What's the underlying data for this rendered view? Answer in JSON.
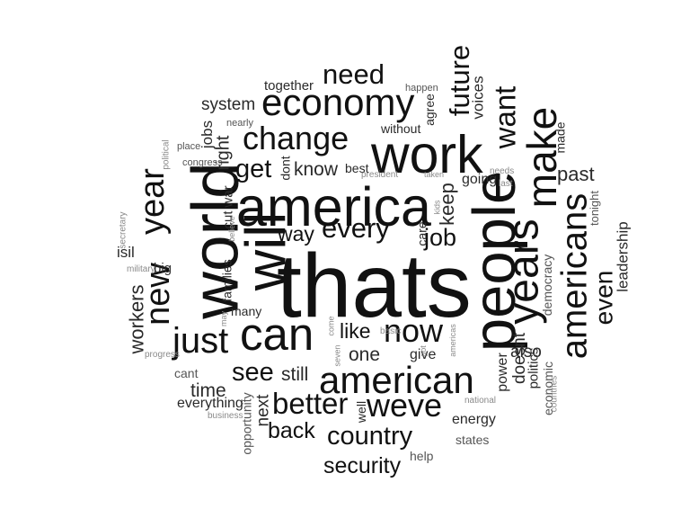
{
  "words": [
    {
      "text": "thats",
      "weight": 1.0,
      "vertical": false
    },
    {
      "text": "world",
      "weight": 0.72,
      "vertical": true
    },
    {
      "text": "people",
      "weight": 0.66,
      "vertical": true
    },
    {
      "text": "will",
      "weight": 0.62,
      "vertical": true
    },
    {
      "text": "america",
      "weight": 0.6,
      "vertical": false
    },
    {
      "text": "work",
      "weight": 0.58,
      "vertical": false
    },
    {
      "text": "can",
      "weight": 0.5,
      "vertical": false
    },
    {
      "text": "years",
      "weight": 0.46,
      "vertical": true
    },
    {
      "text": "make",
      "weight": 0.44,
      "vertical": true
    },
    {
      "text": "economy",
      "weight": 0.4,
      "vertical": false
    },
    {
      "text": "american",
      "weight": 0.4,
      "vertical": false
    },
    {
      "text": "just",
      "weight": 0.38,
      "vertical": false
    },
    {
      "text": "americans",
      "weight": 0.38,
      "vertical": true
    },
    {
      "text": "new",
      "weight": 0.36,
      "vertical": true
    },
    {
      "text": "year",
      "weight": 0.36,
      "vertical": true
    },
    {
      "text": "change",
      "weight": 0.34,
      "vertical": false
    },
    {
      "text": "now",
      "weight": 0.34,
      "vertical": false
    },
    {
      "text": "weve",
      "weight": 0.34,
      "vertical": false
    },
    {
      "text": "want",
      "weight": 0.3,
      "vertical": true
    },
    {
      "text": "better",
      "weight": 0.3,
      "vertical": false
    },
    {
      "text": "future",
      "weight": 0.28,
      "vertical": true
    },
    {
      "text": "need",
      "weight": 0.28,
      "vertical": false
    },
    {
      "text": "every",
      "weight": 0.28,
      "vertical": false
    },
    {
      "text": "country",
      "weight": 0.26,
      "vertical": false
    },
    {
      "text": "see",
      "weight": 0.26,
      "vertical": false
    },
    {
      "text": "get",
      "weight": 0.26,
      "vertical": false
    },
    {
      "text": "even",
      "weight": 0.25,
      "vertical": true
    },
    {
      "text": "job",
      "weight": 0.24,
      "vertical": false
    },
    {
      "text": "back",
      "weight": 0.22,
      "vertical": false
    },
    {
      "text": "security",
      "weight": 0.22,
      "vertical": false
    },
    {
      "text": "like",
      "weight": 0.2,
      "vertical": false
    },
    {
      "text": "way",
      "weight": 0.2,
      "vertical": false
    },
    {
      "text": "workers",
      "weight": 0.18,
      "vertical": true
    },
    {
      "text": "keep",
      "weight": 0.18,
      "vertical": true
    },
    {
      "text": "past",
      "weight": 0.18,
      "vertical": false
    },
    {
      "text": "know",
      "weight": 0.17,
      "vertical": false
    },
    {
      "text": "time",
      "weight": 0.17,
      "vertical": false
    },
    {
      "text": "still",
      "weight": 0.17,
      "vertical": false
    },
    {
      "text": "one",
      "weight": 0.17,
      "vertical": false
    },
    {
      "text": "right",
      "weight": 0.16,
      "vertical": true
    },
    {
      "text": "doesnt",
      "weight": 0.15,
      "vertical": true
    },
    {
      "text": "also",
      "weight": 0.15,
      "vertical": false
    },
    {
      "text": "system",
      "weight": 0.15,
      "vertical": false
    },
    {
      "text": "next",
      "weight": 0.15,
      "vertical": true
    },
    {
      "text": "leadership",
      "weight": 0.13,
      "vertical": true
    },
    {
      "text": "voices",
      "weight": 0.13,
      "vertical": true
    },
    {
      "text": "jobs",
      "weight": 0.13,
      "vertical": true
    },
    {
      "text": "isil",
      "weight": 0.13,
      "vertical": false
    },
    {
      "text": "going",
      "weight": 0.12,
      "vertical": false
    },
    {
      "text": "energy",
      "weight": 0.12,
      "vertical": false
    },
    {
      "text": "everything",
      "weight": 0.12,
      "vertical": false
    },
    {
      "text": "give",
      "weight": 0.12,
      "vertical": false
    },
    {
      "text": "power",
      "weight": 0.12,
      "vertical": true
    },
    {
      "text": "together",
      "weight": 0.11,
      "vertical": false
    },
    {
      "text": "politics",
      "weight": 0.11,
      "vertical": true
    },
    {
      "text": "big",
      "weight": 0.11,
      "vertical": false
    },
    {
      "text": "cut",
      "weight": 0.11,
      "vertical": true
    },
    {
      "text": "war",
      "weight": 0.11,
      "vertical": true
    },
    {
      "text": "families",
      "weight": 0.1,
      "vertical": true
    },
    {
      "text": "agree",
      "weight": 0.1,
      "vertical": true
    },
    {
      "text": "without",
      "weight": 0.1,
      "vertical": false
    },
    {
      "text": "best",
      "weight": 0.1,
      "vertical": false
    },
    {
      "text": "made",
      "weight": 0.1,
      "vertical": true
    },
    {
      "text": "dont",
      "weight": 0.1,
      "vertical": true
    },
    {
      "text": "care",
      "weight": 0.1,
      "vertical": true
    },
    {
      "text": "many",
      "weight": 0.1,
      "vertical": false
    },
    {
      "text": "well",
      "weight": 0.1,
      "vertical": true
    },
    {
      "text": "opportunity",
      "weight": 0.09,
      "vertical": true
    },
    {
      "text": "democracy",
      "weight": 0.09,
      "vertical": true
    },
    {
      "text": "economic",
      "weight": 0.09,
      "vertical": true
    },
    {
      "text": "states",
      "weight": 0.09,
      "vertical": false
    },
    {
      "text": "help",
      "weight": 0.09,
      "vertical": false
    },
    {
      "text": "cant",
      "weight": 0.09,
      "vertical": false
    },
    {
      "text": "tonight",
      "weight": 0.08,
      "vertical": true
    },
    {
      "text": "happen",
      "weight": 0.06,
      "vertical": false
    },
    {
      "text": "nearly",
      "weight": 0.06,
      "vertical": false
    },
    {
      "text": "place",
      "weight": 0.06,
      "vertical": false
    },
    {
      "text": "congress",
      "weight": 0.06,
      "vertical": false
    },
    {
      "text": "political",
      "weight": 0.05,
      "vertical": true
    },
    {
      "text": "secretary",
      "weight": 0.05,
      "vertical": true
    },
    {
      "text": "military",
      "weight": 0.05,
      "vertical": false
    },
    {
      "text": "progress",
      "weight": 0.05,
      "vertical": false
    },
    {
      "text": "business",
      "weight": 0.05,
      "vertical": false
    },
    {
      "text": "national",
      "weight": 0.05,
      "vertical": false
    },
    {
      "text": "basic",
      "weight": 0.05,
      "vertical": false
    },
    {
      "text": "needs",
      "weight": 0.05,
      "vertical": false
    },
    {
      "text": "last",
      "weight": 0.05,
      "vertical": false
    },
    {
      "text": "countries",
      "weight": 0.05,
      "vertical": true
    },
    {
      "text": "president",
      "weight": 0.05,
      "vertical": false
    },
    {
      "text": "taken",
      "weight": 0.04,
      "vertical": false
    },
    {
      "text": "believe",
      "weight": 0.04,
      "vertical": true
    },
    {
      "text": "may",
      "weight": 0.04,
      "vertical": true
    },
    {
      "text": "come",
      "weight": 0.04,
      "vertical": true
    },
    {
      "text": "americas",
      "weight": 0.04,
      "vertical": true
    },
    {
      "text": "got",
      "weight": 0.04,
      "vertical": true
    },
    {
      "text": "seven",
      "weight": 0.04,
      "vertical": true
    },
    {
      "text": "kids",
      "weight": 0.04,
      "vertical": true
    }
  ]
}
